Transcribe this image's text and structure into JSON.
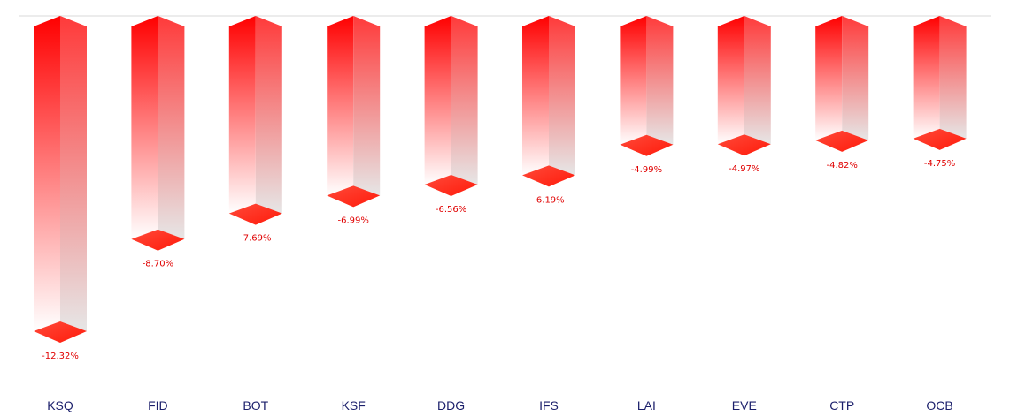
{
  "chart_data": {
    "type": "bar",
    "style": "3d-hanging-columns",
    "categories": [
      "KSQ",
      "FID",
      "BOT",
      "KSF",
      "DDG",
      "IFS",
      "LAI",
      "EVE",
      "CTP",
      "OCB"
    ],
    "values": [
      -12.32,
      -8.7,
      -7.69,
      -6.99,
      -6.56,
      -6.19,
      -4.99,
      -4.97,
      -4.82,
      -4.75
    ],
    "value_labels": [
      "-12.32%",
      "-8.70%",
      "-7.69%",
      "-6.99%",
      "-6.56%",
      "-6.19%",
      "-4.99%",
      "-4.97%",
      "-4.82%",
      "-4.75%"
    ],
    "title": "",
    "xlabel": "",
    "ylabel": "",
    "ylim": [
      -12.32,
      0
    ],
    "grid": false,
    "legend": "none",
    "colors": {
      "bar_top": "#ff0000",
      "bar_bottom": "#ffffff",
      "side_light": "#e6e6e6",
      "cap": "#ff2a1a",
      "value_label": "#e00000",
      "category_label": "#1b1f6b",
      "baseline": "#d9d9d9"
    }
  }
}
